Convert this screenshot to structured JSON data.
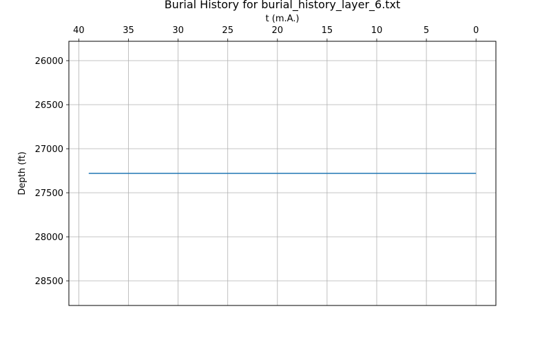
{
  "chart_data": {
    "type": "line",
    "title": "Burial History for burial_history_layer_6.txt",
    "xlabel": "t (m.A.)",
    "ylabel": "Depth (ft)",
    "x_axis_position": "top",
    "x_inverted": true,
    "y_inverted": true,
    "xlim": [
      41,
      -2
    ],
    "ylim": [
      25780,
      28780
    ],
    "xticks": [
      40,
      35,
      30,
      25,
      20,
      15,
      10,
      5,
      0
    ],
    "yticks": [
      26000,
      26500,
      27000,
      27500,
      28000,
      28500
    ],
    "grid": true,
    "series": [
      {
        "x": [
          39,
          0
        ],
        "y": [
          27280,
          27280
        ],
        "color": "#1f77b4"
      }
    ]
  }
}
